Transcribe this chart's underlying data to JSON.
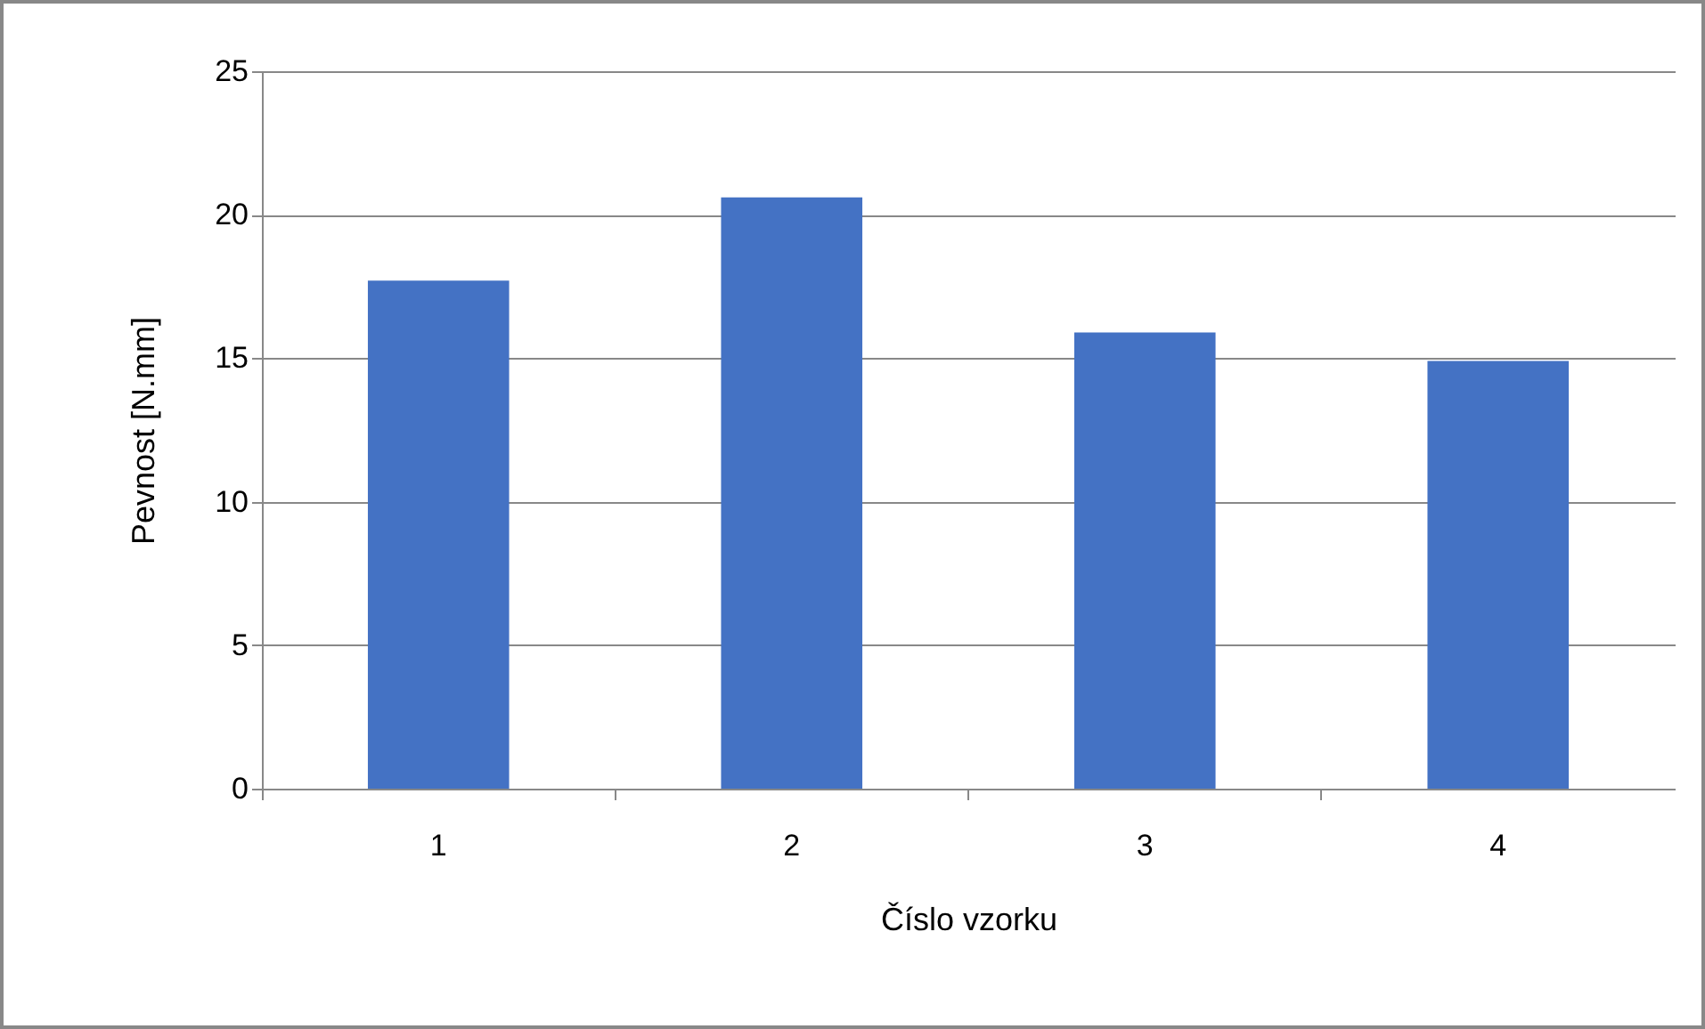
{
  "chart_data": {
    "type": "bar",
    "xlabel": "Číslo vzorku",
    "ylabel": "Pevnost [N.mm]",
    "categories": [
      "1",
      "2",
      "3",
      "4"
    ],
    "values": [
      17.7,
      20.6,
      15.9,
      14.9
    ],
    "color": "#4472c4",
    "ylim": [
      0,
      25
    ],
    "yticks": [
      0,
      5,
      10,
      15,
      20,
      25
    ],
    "grid": "y"
  }
}
